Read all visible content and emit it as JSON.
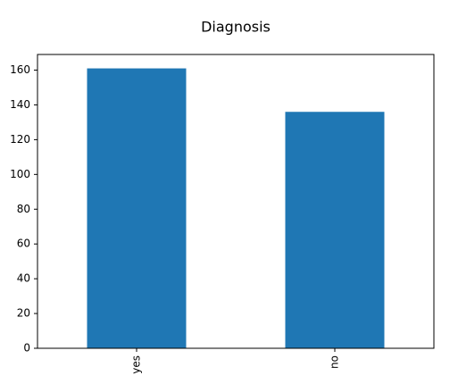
{
  "chart_data": {
    "type": "bar",
    "title": "Diagnosis",
    "categories": [
      "yes",
      "no"
    ],
    "values": [
      161,
      136
    ],
    "color": "#1f77b4",
    "ylim": [
      0,
      169
    ],
    "yticks": [
      0,
      20,
      40,
      60,
      80,
      100,
      120,
      140,
      160
    ],
    "grid": false
  }
}
